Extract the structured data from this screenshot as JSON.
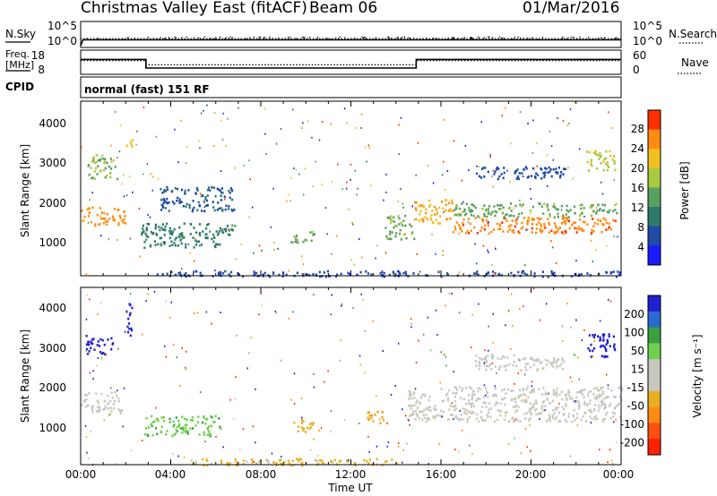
{
  "header": {
    "station": "Christmas Valley East (fitACF)",
    "beam": "Beam 06",
    "date": "01/Mar/2016"
  },
  "small_panels": {
    "nsky_label": "N.Sky",
    "nsearch_label": "N.Search",
    "noise_ticks": [
      "10^5",
      "10^0"
    ],
    "freq_label_1": "Freq.",
    "freq_label_2": "[MHz]",
    "freq_ticks": [
      "18",
      "8"
    ],
    "nave_label": "Nave",
    "nave_ticks": [
      "60",
      "0"
    ],
    "cpid_label": "CPID",
    "cpid_text": "normal (fast) 151 RF"
  },
  "time_axis": {
    "label": "Time UT",
    "ticks": [
      "00:00",
      "04:00",
      "08:00",
      "12:00",
      "16:00",
      "20:00",
      "00:00"
    ]
  },
  "power_panel": {
    "ylabel": "Slant Range [km]",
    "yticks": [
      "4000",
      "3000",
      "2000",
      "1000"
    ],
    "colorbar_label": "Power [dB]",
    "colorbar_ticks": [
      "28",
      "24",
      "20",
      "16",
      "12",
      "8",
      "4"
    ],
    "colors": [
      "#1a1aff",
      "#1f4aa8",
      "#2d7a6a",
      "#5aa060",
      "#a8c840",
      "#f0c020",
      "#ff8c10",
      "#ff3000"
    ]
  },
  "velocity_panel": {
    "ylabel": "Slant Range [km]",
    "yticks": [
      "4000",
      "3000",
      "2000",
      "1000"
    ],
    "colorbar_label": "Velocity [m s⁻¹]",
    "colorbar_ticks": [
      "200",
      "100",
      "50",
      "15",
      "-15",
      "-50",
      "-100",
      "-200"
    ],
    "colors": [
      "#2020d0",
      "#3aa040",
      "#6fd050",
      "#c8c8c0",
      "#e8b020",
      "#ff8c10",
      "#ff3000"
    ],
    "ground_scatter_color": "#c8c8c0"
  },
  "chart_data": [
    {
      "type": "line",
      "name": "noise",
      "x_range_hours": [
        0,
        24
      ],
      "series": [
        {
          "name": "N.Sky",
          "x": [
            0,
            0.1,
            24
          ],
          "values": [
            1,
            20,
            20
          ]
        },
        {
          "name": "N.Search",
          "x": [
            0,
            24
          ],
          "values": [
            20,
            20
          ]
        }
      ]
    },
    {
      "type": "line",
      "name": "frequency",
      "x_range_hours": [
        0,
        24
      ],
      "series": [
        {
          "name": "Freq.",
          "x": [
            0,
            2.9,
            2.9,
            14.9,
            14.9,
            24
          ],
          "values": [
            14.5,
            14.5,
            10.5,
            10.5,
            14.5,
            14.5
          ]
        },
        {
          "name": "Nave",
          "x": [
            0,
            2.9,
            2.9,
            14.9,
            14.9,
            24
          ],
          "values": [
            36,
            36,
            24,
            24,
            36,
            36
          ]
        }
      ]
    },
    {
      "type": "heatmap",
      "name": "power",
      "x_range_hours": [
        0,
        24
      ],
      "ylim": [
        180,
        4500
      ],
      "zlim": [
        0,
        30
      ],
      "regions": [
        {
          "t": [
            0.0,
            2.0
          ],
          "r": [
            1450,
            1900
          ],
          "v": 24
        },
        {
          "t": [
            0.3,
            1.6
          ],
          "r": [
            2600,
            3200
          ],
          "v": 15
        },
        {
          "t": [
            2.0,
            2.3
          ],
          "r": [
            3350,
            3650
          ],
          "v": 21
        },
        {
          "t": [
            2.6,
            6.2
          ],
          "r": [
            900,
            1500
          ],
          "v": 10
        },
        {
          "t": [
            3.5,
            6.8
          ],
          "r": [
            1800,
            2400
          ],
          "v": 7
        },
        {
          "t": [
            6.0,
            7.0
          ],
          "r": [
            1200,
            1500
          ],
          "v": 11
        },
        {
          "t": [
            9.3,
            10.4
          ],
          "r": [
            1000,
            1300
          ],
          "v": 15
        },
        {
          "t": [
            13.5,
            14.8
          ],
          "r": [
            1100,
            1700
          ],
          "v": 15
        },
        {
          "t": [
            14.8,
            16.5
          ],
          "r": [
            1500,
            2100
          ],
          "v": 22
        },
        {
          "t": [
            16.5,
            23.8
          ],
          "r": [
            1250,
            1650
          ],
          "v": 25
        },
        {
          "t": [
            16.5,
            23.8
          ],
          "r": [
            1650,
            2000
          ],
          "v": 14
        },
        {
          "t": [
            17.5,
            21.5
          ],
          "r": [
            2600,
            2900
          ],
          "v": 6
        },
        {
          "t": [
            22.4,
            23.7
          ],
          "r": [
            2800,
            3300
          ],
          "v": 18
        },
        {
          "t": [
            3.0,
            24.0
          ],
          "r": [
            180,
            320
          ],
          "v": 5
        }
      ]
    },
    {
      "type": "heatmap",
      "name": "velocity",
      "x_range_hours": [
        0,
        24
      ],
      "ylim": [
        180,
        4500
      ],
      "zlim": [
        -200,
        200
      ],
      "regions": [
        {
          "t": [
            0.0,
            1.8
          ],
          "r": [
            1450,
            2000
          ],
          "v": 0,
          "gs": true
        },
        {
          "t": [
            0.2,
            1.4
          ],
          "r": [
            2900,
            3350
          ],
          "v": 200
        },
        {
          "t": [
            2.0,
            2.3
          ],
          "r": [
            3350,
            4200
          ],
          "v": 180
        },
        {
          "t": [
            2.8,
            6.2
          ],
          "r": [
            900,
            1400
          ],
          "v": 40
        },
        {
          "t": [
            9.3,
            10.4
          ],
          "r": [
            1000,
            1300
          ],
          "v": -40
        },
        {
          "t": [
            12.6,
            13.6
          ],
          "r": [
            1200,
            1500
          ],
          "v": -45
        },
        {
          "t": [
            14.5,
            24.0
          ],
          "r": [
            1250,
            2100
          ],
          "v": 0,
          "gs": true
        },
        {
          "t": [
            17.5,
            21.5
          ],
          "r": [
            2500,
            2900
          ],
          "v": 0,
          "gs": true
        },
        {
          "t": [
            22.4,
            23.7
          ],
          "r": [
            2800,
            3400
          ],
          "v": 160
        },
        {
          "t": [
            5.0,
            14.0
          ],
          "r": [
            180,
            350
          ],
          "v": -30
        }
      ]
    }
  ]
}
